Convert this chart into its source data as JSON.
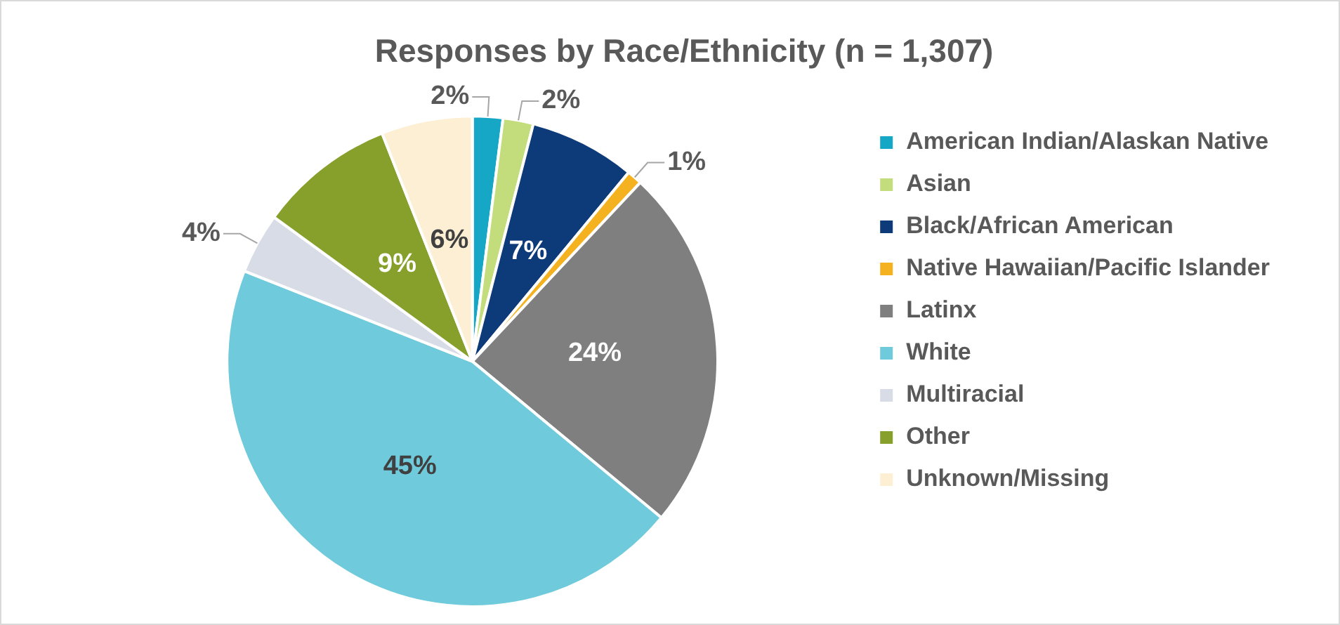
{
  "chart_data": {
    "type": "pie",
    "title": "Responses by Race/Ethnicity (n = 1,307)",
    "categories": [
      "American Indian/Alaskan Native",
      "Asian",
      "Black/African American",
      "Native Hawaiian/Pacific Islander",
      "Latinx",
      "White",
      "Multiracial",
      "Other",
      "Unknown/Missing"
    ],
    "values": [
      2,
      2,
      7,
      1,
      24,
      45,
      4,
      9,
      6
    ],
    "value_labels": [
      "2%",
      "2%",
      "7%",
      "1%",
      "24%",
      "45%",
      "4%",
      "9%",
      "6%"
    ],
    "colors": [
      "#17a7c6",
      "#c3dd7d",
      "#0d3a78",
      "#f4b120",
      "#7f7f7f",
      "#6fcadb",
      "#d8dce6",
      "#87a02b",
      "#fcefd4"
    ],
    "legend": "right"
  }
}
